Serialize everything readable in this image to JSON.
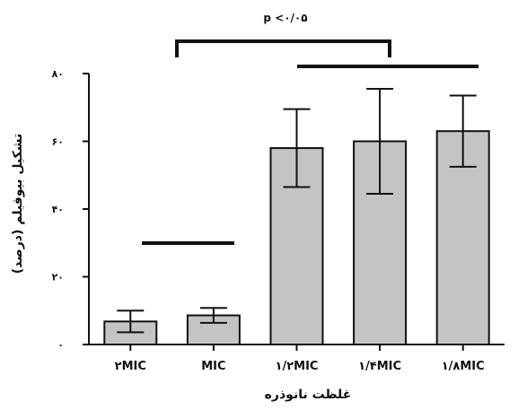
{
  "chart_data": {
    "type": "bar",
    "categories": [
      "۲MIC",
      "MIC",
      "۱/۲MIC",
      "۱/۴MIC",
      "۱/۸MIC"
    ],
    "values": [
      6.8,
      8.6,
      58,
      60,
      63
    ],
    "error": [
      3.2,
      2.2,
      11.5,
      15.5,
      10.5
    ],
    "ylim": [
      0,
      80
    ],
    "yticks": [
      0,
      20,
      40,
      60,
      80
    ],
    "ytick_labels": [
      "۰",
      "۲۰",
      "۴۰",
      "۶۰",
      "۸۰"
    ],
    "xlabel": "غلظت نانوذره",
    "ylabel": "تشکیل بیوفیلم (درصد)",
    "annotation": "p <۰/۰۵",
    "bar_color": "#c4c4c4",
    "grid": false
  }
}
